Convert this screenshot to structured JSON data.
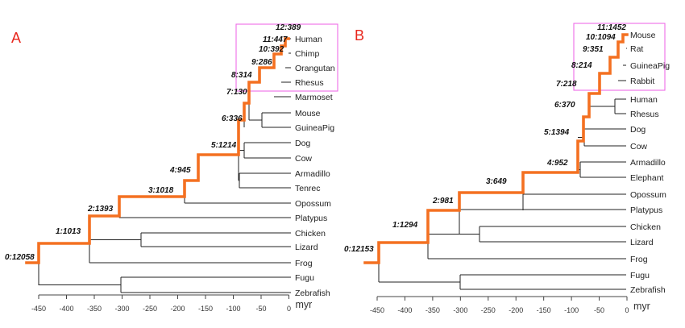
{
  "axis_unit": "myr",
  "panels": [
    {
      "id": "A",
      "letter": "A",
      "axis_ticks": [
        -450,
        -400,
        -350,
        -300,
        -250,
        -200,
        -150,
        -100,
        -50,
        0
      ],
      "taxa": [
        "Human",
        "Chimp",
        "Orangutan",
        "Rhesus",
        "Marmoset",
        "Mouse",
        "GuineaPig",
        "Dog",
        "Cow",
        "Armadillo",
        "Tenrec",
        "Opossum",
        "Platypus",
        "Chicken",
        "Lizard",
        "Frog",
        "Fugu",
        "Zebrafish"
      ],
      "node_labels": [
        "0:12058",
        "1:1013",
        "2:1393",
        "3:1018",
        "4:945",
        "5:1214",
        "6:336",
        "7:130",
        "8:314",
        "9:286",
        "10:392",
        "11:447",
        "12:389"
      ],
      "highlight_taxa": [
        "Human",
        "Chimp",
        "Orangutan",
        "Rhesus"
      ]
    },
    {
      "id": "B",
      "letter": "B",
      "axis_ticks": [
        -450,
        -400,
        -350,
        -300,
        -250,
        -200,
        -150,
        -100,
        -50,
        0
      ],
      "taxa": [
        "Mouse",
        "Rat",
        "GuineaPig",
        "Rabbit",
        "Human",
        "Rhesus",
        "Dog",
        "Cow",
        "Armadillo",
        "Elephant",
        "Opossum",
        "Platypus",
        "Chicken",
        "Lizard",
        "Frog",
        "Fugu",
        "Zebrafish"
      ],
      "node_labels": [
        "0:12153",
        "1:1294",
        "2:981",
        "3:649",
        "4:952",
        "5:1394",
        "6:370",
        "7:218",
        "8:214",
        "9:351",
        "10:1094",
        "11:1452"
      ],
      "highlight_taxa": [
        "Mouse",
        "Rat",
        "GuineaPig",
        "Rabbit"
      ]
    }
  ],
  "colors": {
    "path": "#f47021",
    "branch": "#222222",
    "highlight_box": "#ef6be8",
    "panel_letter": "#e8261c"
  }
}
